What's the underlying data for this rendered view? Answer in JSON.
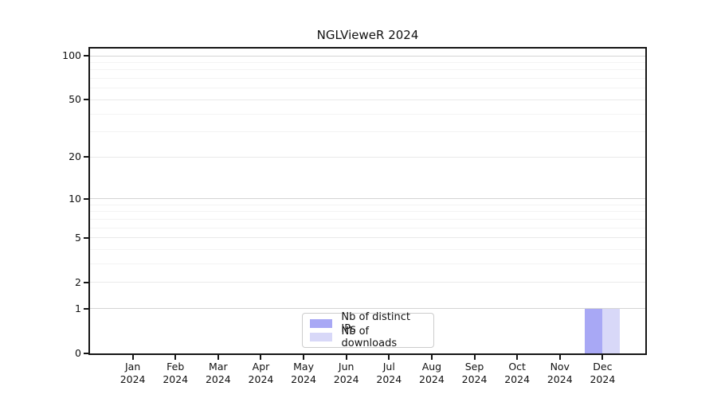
{
  "chart_data": {
    "type": "bar",
    "title": "NGLVieweR 2024",
    "categories": [
      "Jan 2024",
      "Feb 2024",
      "Mar 2024",
      "Apr 2024",
      "May 2024",
      "Jun 2024",
      "Jul 2024",
      "Aug 2024",
      "Sep 2024",
      "Oct 2024",
      "Nov 2024",
      "Dec 2024"
    ],
    "series": [
      {
        "name": "Nb of distinct IPs",
        "color": "#a8a8f5",
        "values": [
          0,
          0,
          0,
          0,
          0,
          0,
          0,
          0,
          0,
          0,
          0,
          1
        ]
      },
      {
        "name": "Nb of downloads",
        "color": "#d8d8f8",
        "values": [
          0,
          0,
          0,
          0,
          0,
          0,
          0,
          0,
          0,
          0,
          0,
          1
        ]
      }
    ],
    "xlabel": "",
    "ylabel": "",
    "yscale": "log1p",
    "ylim": [
      0,
      111
    ],
    "y_tick_labels": [
      0,
      1,
      2,
      5,
      10,
      20,
      50,
      100
    ],
    "y_gridlines": {
      "major": [
        1,
        10,
        100
      ],
      "mid": [
        2,
        5,
        20,
        50
      ],
      "minor": [
        3,
        4,
        6,
        7,
        8,
        9,
        30,
        40,
        60,
        70,
        80,
        90
      ]
    },
    "grid": true,
    "legend_position": "lower center"
  }
}
